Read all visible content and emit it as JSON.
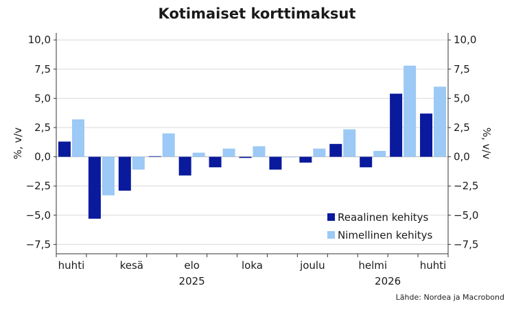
{
  "chart_data": {
    "type": "bar",
    "title": "Kotimaiset korttimaksut",
    "ylabel_left": "%, v/v",
    "ylabel_right": "%, v/v",
    "ylim": [
      -8.3,
      10.6
    ],
    "yticks": [
      10.0,
      7.5,
      5.0,
      2.5,
      0.0,
      -2.5,
      -5.0,
      -7.5
    ],
    "ytick_labels": [
      "10,0",
      "7,5",
      "5,0",
      "2,5",
      "0,0",
      "−2,5",
      "−5,0",
      "−7,5"
    ],
    "grid": true,
    "legend_position": "bottom-right",
    "periods": 13,
    "month_labels": [
      {
        "index": 0,
        "label": "huhti"
      },
      {
        "index": 2,
        "label": "kesä"
      },
      {
        "index": 4,
        "label": "elo"
      },
      {
        "index": 6,
        "label": "loka"
      },
      {
        "index": 8,
        "label": "joulu"
      },
      {
        "index": 10,
        "label": "helmi"
      },
      {
        "index": 12,
        "label": "huhti"
      }
    ],
    "year_labels": [
      {
        "index": 4,
        "label": "2025"
      },
      {
        "index": 10.5,
        "label": "2026"
      }
    ],
    "series": [
      {
        "name": "Reaalinen kehitys",
        "color": "#0a1a9c",
        "values": [
          1.3,
          -5.3,
          -2.9,
          0.05,
          -1.6,
          -0.9,
          -0.1,
          -1.1,
          -0.5,
          1.1,
          -0.9,
          5.4,
          3.7
        ]
      },
      {
        "name": "Nimellinen kehitys",
        "color": "#9cc9f5",
        "values": [
          3.2,
          -3.3,
          -1.1,
          2.0,
          0.35,
          0.7,
          0.9,
          0.0,
          0.7,
          2.35,
          0.5,
          7.8,
          6.0
        ]
      }
    ]
  },
  "source": "Lähde: Nordea ja Macrobond"
}
